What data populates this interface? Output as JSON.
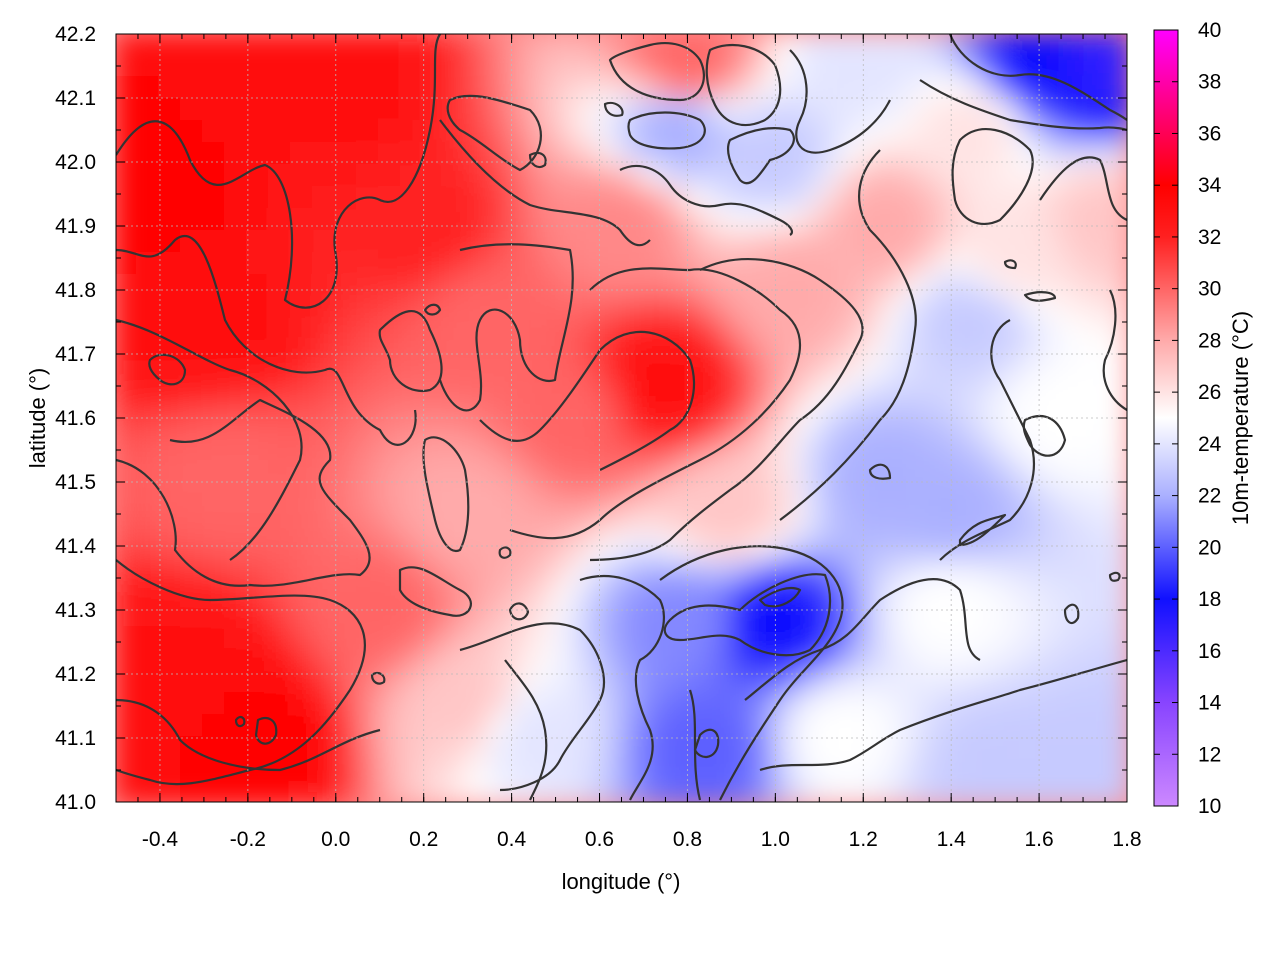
{
  "chart_data": {
    "type": "heatmap",
    "title": "",
    "xlabel": "longitude (°)",
    "ylabel": "latitude (°)",
    "colorbar_label": "10m-temperature (°C)",
    "xlim": [
      -0.5,
      1.8
    ],
    "ylim": [
      41.0,
      42.2
    ],
    "x_ticks": [
      -0.4,
      -0.2,
      0.0,
      0.2,
      0.4,
      0.6,
      0.8,
      1.0,
      1.2,
      1.4,
      1.6,
      1.8
    ],
    "x_tick_labels": [
      "-0.4",
      "-0.2",
      "0.0",
      "0.2",
      "0.4",
      "0.6",
      "0.8",
      "1.0",
      "1.2",
      "1.4",
      "1.6",
      "1.8"
    ],
    "y_ticks": [
      41.0,
      41.1,
      41.2,
      41.3,
      41.4,
      41.5,
      41.6,
      41.7,
      41.8,
      41.9,
      42.0,
      42.1,
      42.2
    ],
    "y_tick_labels": [
      "41.0",
      "41.1",
      "41.2",
      "41.3",
      "41.4",
      "41.5",
      "41.6",
      "41.7",
      "41.8",
      "41.9",
      "42.0",
      "42.1",
      "42.2"
    ],
    "colorbar_range": [
      10,
      40
    ],
    "colorbar_ticks": [
      10,
      12,
      14,
      16,
      18,
      20,
      22,
      24,
      26,
      28,
      30,
      32,
      34,
      36,
      38,
      40
    ],
    "colorbar_tick_labels": [
      "10",
      "12",
      "14",
      "16",
      "18",
      "20",
      "22",
      "24",
      "26",
      "28",
      "30",
      "32",
      "34",
      "36",
      "38",
      "40"
    ],
    "colormap": [
      {
        "value": 10,
        "color": "#cc88ff"
      },
      {
        "value": 14,
        "color": "#8844ff"
      },
      {
        "value": 18,
        "color": "#1010ff"
      },
      {
        "value": 22,
        "color": "#aab0ff"
      },
      {
        "value": 25,
        "color": "#ffffff"
      },
      {
        "value": 28,
        "color": "#ffaaaa"
      },
      {
        "value": 32,
        "color": "#ff2020"
      },
      {
        "value": 34,
        "color": "#ff0000"
      },
      {
        "value": 40,
        "color": "#ff00ff"
      }
    ],
    "grid": true,
    "contours": true,
    "temperature_samples": [
      {
        "lon": -0.45,
        "lat": 41.95,
        "t": 34
      },
      {
        "lon": -0.3,
        "lat": 41.75,
        "t": 33
      },
      {
        "lon": -0.25,
        "lat": 41.5,
        "t": 30
      },
      {
        "lon": -0.35,
        "lat": 41.2,
        "t": 33
      },
      {
        "lon": -0.2,
        "lat": 41.1,
        "t": 34
      },
      {
        "lon": 0.0,
        "lat": 42.1,
        "t": 33
      },
      {
        "lon": 0.1,
        "lat": 41.3,
        "t": 30
      },
      {
        "lon": 0.2,
        "lat": 41.9,
        "t": 32
      },
      {
        "lon": 0.35,
        "lat": 41.75,
        "t": 30
      },
      {
        "lon": 0.3,
        "lat": 41.45,
        "t": 28
      },
      {
        "lon": 0.3,
        "lat": 41.15,
        "t": 27
      },
      {
        "lon": 0.45,
        "lat": 41.1,
        "t": 24
      },
      {
        "lon": 0.55,
        "lat": 41.6,
        "t": 30
      },
      {
        "lon": 0.75,
        "lat": 41.65,
        "t": 33
      },
      {
        "lon": 0.65,
        "lat": 41.9,
        "t": 29
      },
      {
        "lon": 0.8,
        "lat": 42.15,
        "t": 30
      },
      {
        "lon": 0.78,
        "lat": 42.05,
        "t": 22
      },
      {
        "lon": 1.0,
        "lat": 42.0,
        "t": 23
      },
      {
        "lon": 1.05,
        "lat": 41.8,
        "t": 28
      },
      {
        "lon": 0.9,
        "lat": 41.45,
        "t": 27
      },
      {
        "lon": 0.8,
        "lat": 41.28,
        "t": 21
      },
      {
        "lon": 1.0,
        "lat": 41.28,
        "t": 18
      },
      {
        "lon": 0.85,
        "lat": 41.08,
        "t": 20
      },
      {
        "lon": 1.15,
        "lat": 41.1,
        "t": 25
      },
      {
        "lon": 1.25,
        "lat": 41.9,
        "t": 28
      },
      {
        "lon": 1.25,
        "lat": 41.5,
        "t": 22
      },
      {
        "lon": 1.4,
        "lat": 41.3,
        "t": 25
      },
      {
        "lon": 1.5,
        "lat": 41.05,
        "t": 23
      },
      {
        "lon": 1.7,
        "lat": 41.05,
        "t": 23
      },
      {
        "lon": 1.4,
        "lat": 41.45,
        "t": 22
      },
      {
        "lon": 1.45,
        "lat": 41.75,
        "t": 23
      },
      {
        "lon": 1.65,
        "lat": 41.6,
        "t": 25
      },
      {
        "lon": 1.55,
        "lat": 41.85,
        "t": 26
      },
      {
        "lon": 1.6,
        "lat": 42.15,
        "t": 18
      },
      {
        "lon": 1.75,
        "lat": 42.15,
        "t": 17
      },
      {
        "lon": 1.45,
        "lat": 42.05,
        "t": 26
      },
      {
        "lon": 1.75,
        "lat": 41.9,
        "t": 27
      },
      {
        "lon": 1.2,
        "lat": 42.15,
        "t": 24
      }
    ]
  }
}
